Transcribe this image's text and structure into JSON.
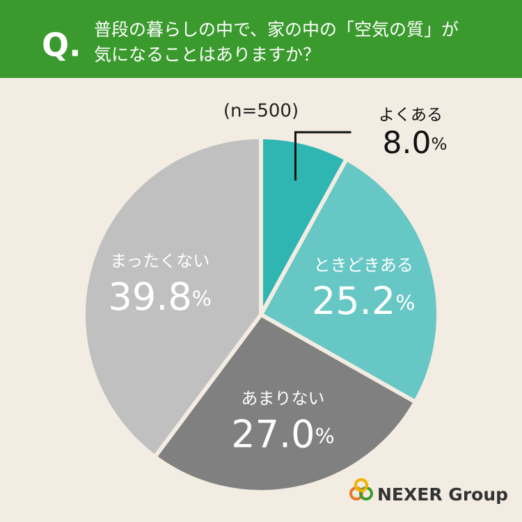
{
  "chart_data": {
    "type": "pie",
    "question_label": "Q.",
    "title": [
      "普段の暮らしの中で、家の中の「空気の質」が",
      "気になることはありますか？"
    ],
    "sample_size": "(n=500)",
    "categories": [
      "よくある",
      "ときどきある",
      "あまりない",
      "まったくない"
    ],
    "values": [
      8.0,
      25.2,
      27.0,
      39.8
    ],
    "value_labels": [
      "8.0%",
      "25.2%",
      "27.0%",
      "39.8%"
    ],
    "colors": [
      "#2fb5b2",
      "#66c7c4",
      "#808080",
      "#c0c0c0"
    ],
    "logo": "NEXER Group"
  }
}
